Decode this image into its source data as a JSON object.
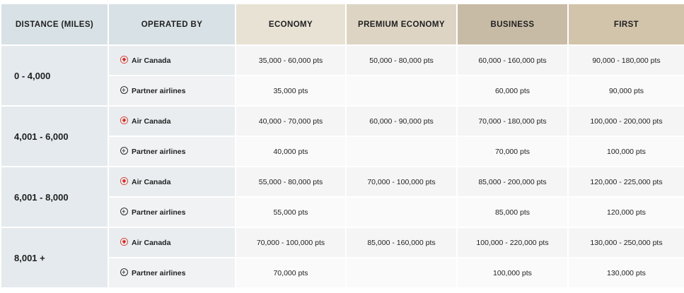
{
  "headers": {
    "distance": "DISTANCE (MILES)",
    "operated_by": "OPERATED BY",
    "economy": "ECONOMY",
    "premium_economy": "PREMIUM ECONOMY",
    "business": "BUSINESS",
    "first": "FIRST"
  },
  "icons": {
    "air_canada": "maple-leaf-icon",
    "partner": "plane-circle-icon"
  },
  "colors": {
    "air_canada_red": "#d52b1e"
  },
  "bands": [
    {
      "distance": "0 - 4,000",
      "air_canada": {
        "label": "Air Canada",
        "economy": "35,000 - 60,000 pts",
        "premium_economy": "50,000 - 80,000 pts",
        "business": "60,000 - 160,000 pts",
        "first": "90,000 - 180,000 pts"
      },
      "partner": {
        "label": "Partner airlines",
        "economy": "35,000 pts",
        "premium_economy": "",
        "business": "60,000 pts",
        "first": "90,000 pts"
      }
    },
    {
      "distance": "4,001 - 6,000",
      "air_canada": {
        "label": "Air Canada",
        "economy": "40,000 - 70,000 pts",
        "premium_economy": "60,000 - 90,000 pts",
        "business": "70,000 - 180,000 pts",
        "first": "100,000 - 200,000 pts"
      },
      "partner": {
        "label": "Partner airlines",
        "economy": "40,000 pts",
        "premium_economy": "",
        "business": "70,000 pts",
        "first": "100,000 pts"
      }
    },
    {
      "distance": "6,001 - 8,000",
      "air_canada": {
        "label": "Air Canada",
        "economy": "55,000 - 80,000 pts",
        "premium_economy": "70,000 - 100,000 pts",
        "business": "85,000 - 200,000 pts",
        "first": "120,000 - 225,000 pts"
      },
      "partner": {
        "label": "Partner airlines",
        "economy": "55,000 pts",
        "premium_economy": "",
        "business": "85,000 pts",
        "first": "120,000 pts"
      }
    },
    {
      "distance": "8,001 +",
      "air_canada": {
        "label": "Air Canada",
        "economy": "70,000 - 100,000 pts",
        "premium_economy": "85,000 - 160,000 pts",
        "business": "100,000 - 220,000 pts",
        "first": "130,000 - 250,000 pts"
      },
      "partner": {
        "label": "Partner airlines",
        "economy": "70,000 pts",
        "premium_economy": "",
        "business": "100,000 pts",
        "first": "130,000 pts"
      }
    }
  ]
}
